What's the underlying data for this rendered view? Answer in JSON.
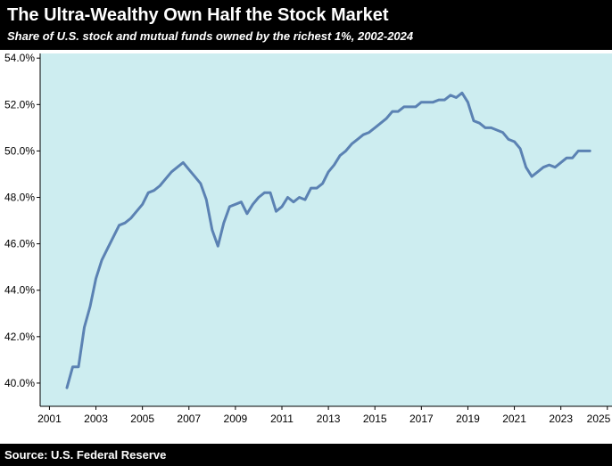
{
  "header": {
    "title": "The Ultra-Wealthy Own Half the Stock Market",
    "subtitle": "Share of U.S. stock and mutual funds owned by the richest 1%, 2002-2024"
  },
  "footer": {
    "source": "Source: U.S. Federal Reserve"
  },
  "colors": {
    "header_bg": "#000000",
    "plot_bg": "#cdedf0",
    "line": "#5b82b3"
  },
  "chart_data": {
    "type": "line",
    "title": "The Ultra-Wealthy Own Half the Stock Market",
    "subtitle": "Share of U.S. stock and mutual funds owned by the richest 1%, 2002-2024",
    "xlabel": "",
    "ylabel": "",
    "xlim": [
      2000.6,
      2025.2
    ],
    "ylim": [
      39.0,
      54.2
    ],
    "x_ticks": [
      2001,
      2003,
      2005,
      2007,
      2009,
      2011,
      2013,
      2015,
      2017,
      2019,
      2021,
      2023,
      2025
    ],
    "x_tick_labels": [
      "2001",
      "2003",
      "2005",
      "2007",
      "2009",
      "2011",
      "2013",
      "2015",
      "2017",
      "2019",
      "2021",
      "2023",
      "2025"
    ],
    "y_ticks": [
      40,
      42,
      44,
      46,
      48,
      50,
      52,
      54
    ],
    "y_tick_labels": [
      "40.0%",
      "42.0%",
      "44.0%",
      "46.0%",
      "48.0%",
      "50.0%",
      "52.0%",
      "54.0%"
    ],
    "grid": false,
    "legend": "none",
    "series": [
      {
        "x": [
          2001.75,
          2002.0,
          2002.25,
          2002.5,
          2002.75,
          2003.0,
          2003.25,
          2003.5,
          2003.75,
          2004.0,
          2004.25,
          2004.5,
          2004.75,
          2005.0,
          2005.25,
          2005.5,
          2005.75,
          2006.0,
          2006.25,
          2006.5,
          2006.75,
          2007.0,
          2007.25,
          2007.5,
          2007.75,
          2008.0,
          2008.25,
          2008.5,
          2008.75,
          2009.0,
          2009.25,
          2009.5,
          2009.75,
          2010.0,
          2010.25,
          2010.5,
          2010.75,
          2011.0,
          2011.25,
          2011.5,
          2011.75,
          2012.0,
          2012.25,
          2012.5,
          2012.75,
          2013.0,
          2013.25,
          2013.5,
          2013.75,
          2014.0,
          2014.25,
          2014.5,
          2014.75,
          2015.0,
          2015.25,
          2015.5,
          2015.75,
          2016.0,
          2016.25,
          2016.5,
          2016.75,
          2017.0,
          2017.25,
          2017.5,
          2017.75,
          2018.0,
          2018.25,
          2018.5,
          2018.75,
          2019.0,
          2019.25,
          2019.5,
          2019.75,
          2020.0,
          2020.25,
          2020.5,
          2020.75,
          2021.0,
          2021.25,
          2021.5,
          2021.75,
          2022.0,
          2022.25,
          2022.5,
          2022.75,
          2023.0,
          2023.25,
          2023.5,
          2023.75,
          2024.0,
          2024.25
        ],
        "y": [
          39.8,
          40.7,
          40.7,
          42.4,
          43.3,
          44.5,
          45.3,
          45.8,
          46.3,
          46.8,
          46.9,
          47.1,
          47.4,
          47.7,
          48.2,
          48.3,
          48.5,
          48.8,
          49.1,
          49.3,
          49.5,
          49.2,
          48.9,
          48.6,
          47.9,
          46.6,
          45.9,
          46.9,
          47.6,
          47.7,
          47.8,
          47.3,
          47.7,
          48.0,
          48.2,
          48.2,
          47.4,
          47.6,
          48.0,
          47.8,
          48.0,
          47.9,
          48.4,
          48.4,
          48.6,
          49.1,
          49.4,
          49.8,
          50.0,
          50.3,
          50.5,
          50.7,
          50.8,
          51.0,
          51.2,
          51.4,
          51.7,
          51.7,
          51.9,
          51.9,
          51.9,
          52.1,
          52.1,
          52.1,
          52.2,
          52.2,
          52.4,
          52.3,
          52.5,
          52.1,
          51.3,
          51.2,
          51.0,
          51.0,
          50.9,
          50.8,
          50.5,
          50.4,
          50.1,
          49.3,
          48.9,
          49.1,
          49.3,
          49.4,
          49.3,
          49.5,
          49.7,
          49.7,
          50.0,
          50.0,
          50.0
        ]
      }
    ]
  }
}
